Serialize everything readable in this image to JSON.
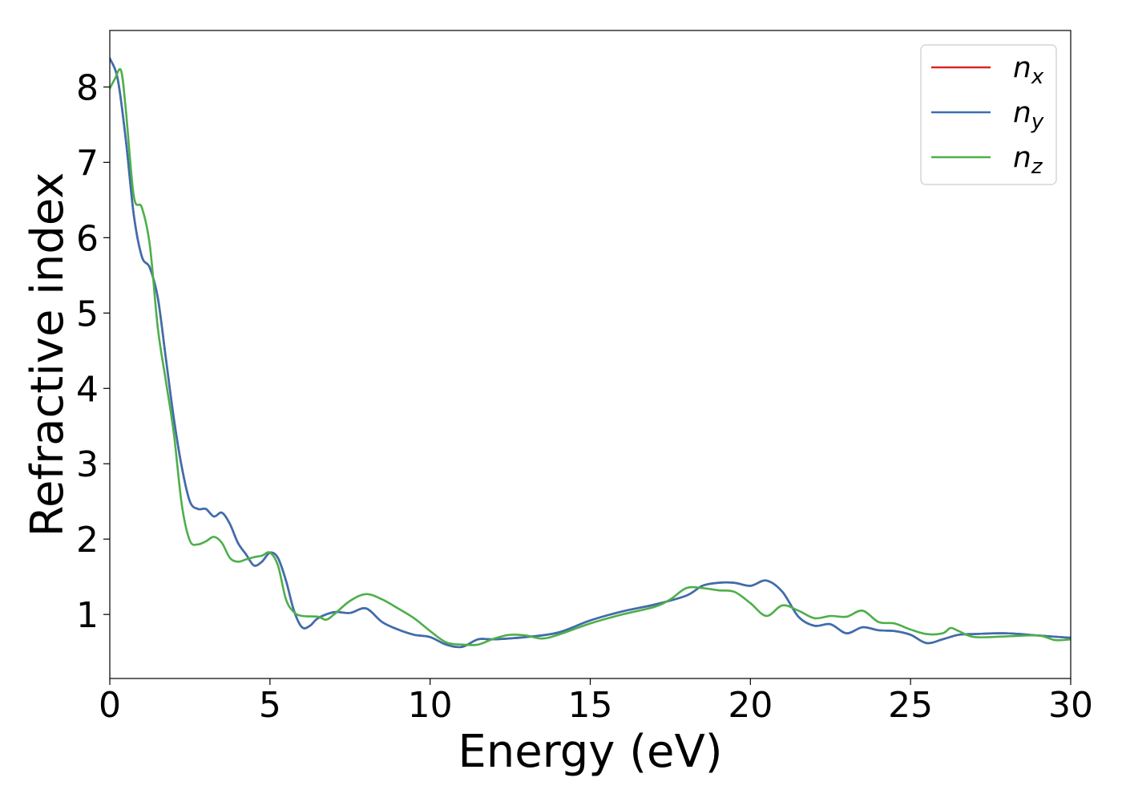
{
  "chart_data": {
    "type": "line",
    "xlabel": "Energy (eV)",
    "ylabel": "Refractive index",
    "xlim": [
      0,
      30
    ],
    "ylim": [
      0.15,
      8.75
    ],
    "x_ticks": [
      0,
      5,
      10,
      15,
      20,
      25,
      30
    ],
    "y_ticks": [
      1,
      2,
      3,
      4,
      5,
      6,
      7,
      8
    ],
    "grid": false,
    "legend_position": "top-right",
    "series": [
      {
        "name": "n",
        "subscript": "x",
        "color": "#d62728",
        "points": [
          [
            0,
            8.38
          ],
          [
            0.25,
            8.1
          ],
          [
            0.5,
            7.3
          ],
          [
            0.75,
            6.3
          ],
          [
            1.0,
            5.75
          ],
          [
            1.25,
            5.6
          ],
          [
            1.5,
            5.2
          ],
          [
            1.75,
            4.4
          ],
          [
            2.0,
            3.6
          ],
          [
            2.25,
            2.95
          ],
          [
            2.5,
            2.5
          ],
          [
            2.75,
            2.4
          ],
          [
            3.0,
            2.4
          ],
          [
            3.25,
            2.3
          ],
          [
            3.5,
            2.35
          ],
          [
            3.75,
            2.2
          ],
          [
            4.0,
            1.95
          ],
          [
            4.25,
            1.8
          ],
          [
            4.5,
            1.65
          ],
          [
            4.75,
            1.7
          ],
          [
            5.0,
            1.82
          ],
          [
            5.25,
            1.75
          ],
          [
            5.5,
            1.45
          ],
          [
            5.75,
            1.05
          ],
          [
            6.0,
            0.83
          ],
          [
            6.25,
            0.85
          ],
          [
            6.5,
            0.95
          ],
          [
            7.0,
            1.03
          ],
          [
            7.5,
            1.02
          ],
          [
            8.0,
            1.08
          ],
          [
            8.5,
            0.9
          ],
          [
            9.0,
            0.8
          ],
          [
            9.5,
            0.73
          ],
          [
            10.0,
            0.7
          ],
          [
            10.5,
            0.6
          ],
          [
            11.0,
            0.57
          ],
          [
            11.5,
            0.67
          ],
          [
            12.0,
            0.67
          ],
          [
            13.0,
            0.7
          ],
          [
            14.0,
            0.76
          ],
          [
            15.0,
            0.92
          ],
          [
            16.0,
            1.04
          ],
          [
            17.0,
            1.13
          ],
          [
            18.0,
            1.25
          ],
          [
            18.5,
            1.38
          ],
          [
            19.0,
            1.42
          ],
          [
            19.5,
            1.42
          ],
          [
            20.0,
            1.38
          ],
          [
            20.5,
            1.45
          ],
          [
            21.0,
            1.3
          ],
          [
            21.5,
            0.97
          ],
          [
            22.0,
            0.85
          ],
          [
            22.5,
            0.87
          ],
          [
            23.0,
            0.75
          ],
          [
            23.5,
            0.83
          ],
          [
            24.0,
            0.79
          ],
          [
            24.5,
            0.78
          ],
          [
            25.0,
            0.73
          ],
          [
            25.5,
            0.62
          ],
          [
            26.0,
            0.67
          ],
          [
            26.5,
            0.73
          ],
          [
            27.0,
            0.74
          ],
          [
            28.0,
            0.75
          ],
          [
            29.0,
            0.72
          ],
          [
            30.0,
            0.69
          ]
        ]
      },
      {
        "name": "n",
        "subscript": "y",
        "color": "#3a6fb0",
        "points": [
          [
            0,
            8.38
          ],
          [
            0.25,
            8.1
          ],
          [
            0.5,
            7.3
          ],
          [
            0.75,
            6.3
          ],
          [
            1.0,
            5.75
          ],
          [
            1.25,
            5.6
          ],
          [
            1.5,
            5.2
          ],
          [
            1.75,
            4.4
          ],
          [
            2.0,
            3.6
          ],
          [
            2.25,
            2.95
          ],
          [
            2.5,
            2.5
          ],
          [
            2.75,
            2.4
          ],
          [
            3.0,
            2.4
          ],
          [
            3.25,
            2.3
          ],
          [
            3.5,
            2.35
          ],
          [
            3.75,
            2.2
          ],
          [
            4.0,
            1.95
          ],
          [
            4.25,
            1.8
          ],
          [
            4.5,
            1.65
          ],
          [
            4.75,
            1.7
          ],
          [
            5.0,
            1.82
          ],
          [
            5.25,
            1.75
          ],
          [
            5.5,
            1.45
          ],
          [
            5.75,
            1.05
          ],
          [
            6.0,
            0.83
          ],
          [
            6.25,
            0.85
          ],
          [
            6.5,
            0.95
          ],
          [
            7.0,
            1.03
          ],
          [
            7.5,
            1.02
          ],
          [
            8.0,
            1.08
          ],
          [
            8.5,
            0.9
          ],
          [
            9.0,
            0.8
          ],
          [
            9.5,
            0.73
          ],
          [
            10.0,
            0.7
          ],
          [
            10.5,
            0.6
          ],
          [
            11.0,
            0.57
          ],
          [
            11.5,
            0.67
          ],
          [
            12.0,
            0.67
          ],
          [
            13.0,
            0.7
          ],
          [
            14.0,
            0.76
          ],
          [
            15.0,
            0.92
          ],
          [
            16.0,
            1.04
          ],
          [
            17.0,
            1.13
          ],
          [
            18.0,
            1.25
          ],
          [
            18.5,
            1.38
          ],
          [
            19.0,
            1.42
          ],
          [
            19.5,
            1.42
          ],
          [
            20.0,
            1.38
          ],
          [
            20.5,
            1.45
          ],
          [
            21.0,
            1.3
          ],
          [
            21.5,
            0.97
          ],
          [
            22.0,
            0.85
          ],
          [
            22.5,
            0.87
          ],
          [
            23.0,
            0.75
          ],
          [
            23.5,
            0.83
          ],
          [
            24.0,
            0.79
          ],
          [
            24.5,
            0.78
          ],
          [
            25.0,
            0.73
          ],
          [
            25.5,
            0.62
          ],
          [
            26.0,
            0.67
          ],
          [
            26.5,
            0.73
          ],
          [
            27.0,
            0.74
          ],
          [
            28.0,
            0.75
          ],
          [
            29.0,
            0.72
          ],
          [
            30.0,
            0.69
          ]
        ]
      },
      {
        "name": "n",
        "subscript": "z",
        "color": "#4daf4a",
        "points": [
          [
            0,
            7.98
          ],
          [
            0.15,
            8.1
          ],
          [
            0.35,
            8.22
          ],
          [
            0.5,
            7.7
          ],
          [
            0.75,
            6.55
          ],
          [
            1.0,
            6.4
          ],
          [
            1.25,
            5.9
          ],
          [
            1.5,
            4.8
          ],
          [
            1.75,
            4.1
          ],
          [
            2.0,
            3.4
          ],
          [
            2.25,
            2.45
          ],
          [
            2.5,
            1.98
          ],
          [
            2.75,
            1.93
          ],
          [
            3.0,
            1.97
          ],
          [
            3.25,
            2.03
          ],
          [
            3.5,
            1.95
          ],
          [
            3.75,
            1.75
          ],
          [
            4.0,
            1.7
          ],
          [
            4.25,
            1.73
          ],
          [
            4.5,
            1.76
          ],
          [
            4.75,
            1.78
          ],
          [
            5.0,
            1.82
          ],
          [
            5.25,
            1.65
          ],
          [
            5.5,
            1.2
          ],
          [
            5.75,
            1.03
          ],
          [
            6.0,
            0.98
          ],
          [
            6.5,
            0.97
          ],
          [
            6.75,
            0.93
          ],
          [
            7.0,
            1.0
          ],
          [
            7.5,
            1.18
          ],
          [
            8.0,
            1.27
          ],
          [
            8.5,
            1.2
          ],
          [
            9.0,
            1.08
          ],
          [
            9.5,
            0.95
          ],
          [
            10.0,
            0.78
          ],
          [
            10.5,
            0.63
          ],
          [
            11.0,
            0.6
          ],
          [
            11.5,
            0.6
          ],
          [
            12.0,
            0.68
          ],
          [
            12.5,
            0.73
          ],
          [
            13.0,
            0.72
          ],
          [
            13.5,
            0.68
          ],
          [
            14.0,
            0.73
          ],
          [
            15.0,
            0.88
          ],
          [
            16.0,
            1.0
          ],
          [
            17.0,
            1.1
          ],
          [
            17.5,
            1.2
          ],
          [
            18.0,
            1.35
          ],
          [
            18.5,
            1.35
          ],
          [
            19.0,
            1.32
          ],
          [
            19.5,
            1.3
          ],
          [
            20.0,
            1.15
          ],
          [
            20.5,
            0.98
          ],
          [
            21.0,
            1.12
          ],
          [
            21.5,
            1.05
          ],
          [
            22.0,
            0.95
          ],
          [
            22.5,
            0.98
          ],
          [
            23.0,
            0.97
          ],
          [
            23.5,
            1.05
          ],
          [
            24.0,
            0.9
          ],
          [
            24.5,
            0.88
          ],
          [
            25.0,
            0.8
          ],
          [
            25.5,
            0.74
          ],
          [
            26.0,
            0.75
          ],
          [
            26.25,
            0.82
          ],
          [
            26.5,
            0.78
          ],
          [
            27.0,
            0.7
          ],
          [
            28.0,
            0.71
          ],
          [
            29.0,
            0.72
          ],
          [
            29.5,
            0.66
          ],
          [
            30.0,
            0.67
          ]
        ]
      }
    ]
  }
}
